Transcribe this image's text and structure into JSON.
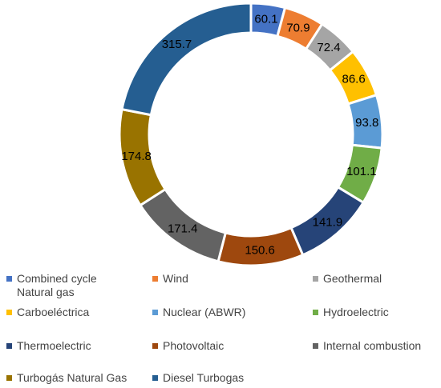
{
  "chart_data": {
    "type": "pie",
    "donut": true,
    "categories": [
      "Combined cycle\n  Natural gas",
      "Wind",
      "Geothermal",
      "Carboeléctrica",
      "Nuclear (ABWR)",
      "Hydroelectric",
      "Thermoelectric",
      "Photovoltaic",
      "Internal combustion",
      "Turbogás Natural Gas",
      "Diesel Turbogas"
    ],
    "values": [
      60.1,
      70.9,
      72.4,
      86.6,
      93.8,
      101.1,
      141.9,
      150.6,
      171.4,
      174.8,
      315.7
    ],
    "data_labels": [
      "60.1",
      "70.9",
      "72.4",
      "86.6",
      "93.8",
      "101.1",
      "141.9",
      "150.6",
      "171.4",
      "174.8",
      "315.7"
    ],
    "colors": [
      "#4472C4",
      "#ED7D31",
      "#A5A5A5",
      "#FFC000",
      "#5B9BD5",
      "#70AD47",
      "#264478",
      "#9E480E",
      "#636363",
      "#997300",
      "#255E91"
    ],
    "legend_position": "bottom",
    "start_angle": "top, clockwise"
  }
}
